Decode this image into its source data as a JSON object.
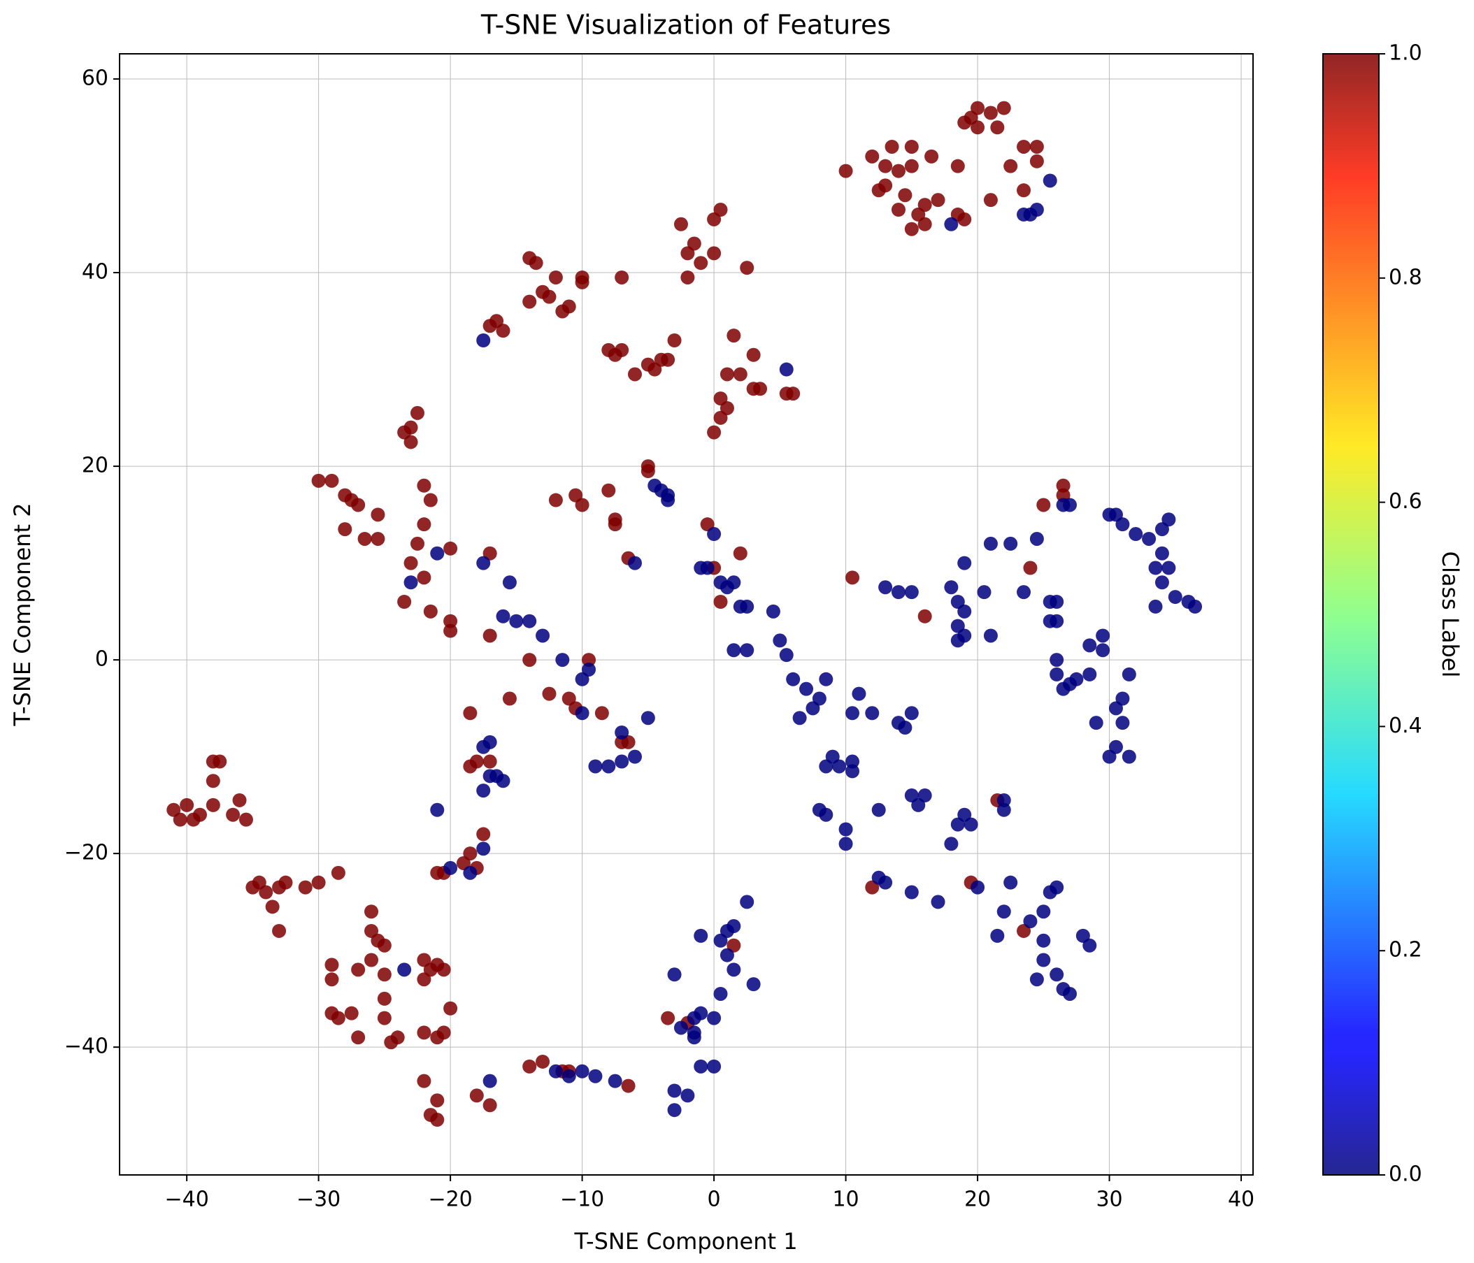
{
  "chart_data": {
    "type": "scatter",
    "title": "T-SNE Visualization of Features",
    "x_label": "T-SNE Component 1",
    "y_label": "T-SNE Component 2",
    "xlim": [
      -45.1,
      40.9
    ],
    "ylim": [
      -53.2,
      62.6
    ],
    "xticks": [
      {
        "value": -40,
        "label": "−40"
      },
      {
        "value": -30,
        "label": "−30"
      },
      {
        "value": -20,
        "label": "−20"
      },
      {
        "value": -10,
        "label": "−10"
      },
      0,
      10,
      20,
      30,
      40
    ],
    "yticks": [
      {
        "value": -40,
        "label": "−40"
      },
      {
        "value": -20,
        "label": "−20"
      },
      0,
      20,
      40,
      60
    ],
    "grid": true,
    "marker_opacity": 0.85,
    "colormap": [
      {
        "value": 0,
        "color": "#00007f"
      },
      {
        "value": 0.11,
        "color": "#0000ff"
      },
      {
        "value": 0.125,
        "color": "#0000ff"
      },
      {
        "value": 0.34,
        "color": "#00d4ff"
      },
      {
        "value": 0.5,
        "color": "#7dff7a"
      },
      {
        "value": 0.65,
        "color": "#ffe600"
      },
      {
        "value": 0.89,
        "color": "#ff1a00"
      },
      {
        "value": 1,
        "color": "#7f0000"
      }
    ],
    "colorbar": {
      "label": "Class Label",
      "lim": [
        0,
        1
      ],
      "ticks": [
        {
          "value": 0,
          "label": "0.0"
        },
        0.2,
        0.4,
        0.6,
        0.8,
        {
          "value": 1,
          "label": "1.0"
        }
      ]
    },
    "series": [
      {
        "class_value": 1,
        "x": [
          10,
          12,
          12.5,
          13,
          13.5,
          14,
          14.5,
          15,
          15,
          15.5,
          15,
          14,
          16,
          16.5,
          17,
          18.5,
          19,
          19.5,
          20,
          21,
          22,
          21.5,
          20,
          19,
          18.5,
          21,
          22.5,
          23.5,
          24.5,
          23.5,
          24.5,
          13,
          16,
          -14,
          -13.5,
          -12,
          -13,
          -14,
          -12.5,
          -11.5,
          -11,
          -10,
          -10,
          -16.5,
          -16,
          -17,
          -7,
          -2.5,
          -2,
          -1.5,
          -1,
          0,
          0.5,
          0,
          -2,
          2.5,
          -8,
          -7.5,
          -7,
          -6,
          -5,
          -4,
          -3.5,
          -3,
          -4.5,
          1.5,
          1,
          2,
          3,
          3,
          3.5,
          6,
          5.5,
          0,
          0.5,
          0.5,
          1,
          -23,
          -23.5,
          -23,
          -22.5,
          -30,
          -29,
          -28,
          -27.5,
          -27,
          -26.5,
          -28,
          -25.5,
          -25.5,
          -22,
          -21.5,
          -22,
          -22.5,
          -23,
          -22,
          -23.5,
          -21.5,
          -20,
          -20,
          -20,
          -17,
          -17,
          -15.5,
          -14,
          -12,
          -10.5,
          -10,
          -8,
          -7.5,
          -7.5,
          -6.5,
          -5,
          -5,
          -0.5,
          0,
          0.5,
          2,
          -12.5,
          -11,
          -10.5,
          -8.5,
          -7,
          -6.5,
          -9.5,
          10.5,
          16,
          24,
          25,
          26.5,
          26.5,
          -41,
          -40.5,
          -40,
          -39.5,
          -39,
          -38,
          -37.5,
          -38,
          -38,
          -36.5,
          -36,
          -35.5,
          -35,
          -34.5,
          -34,
          -33.5,
          -33,
          -33,
          -32.5,
          -31,
          -30,
          -28.5,
          -29,
          -29,
          -29,
          -28.5,
          -27.5,
          -27,
          -27,
          -26,
          -26,
          -25.5,
          -25,
          -26,
          -25,
          -25,
          -25,
          -24.5,
          -24,
          -22,
          -21.5,
          -21,
          -20.5,
          -22,
          -22,
          -21,
          -20.5,
          -20,
          -22,
          -21.5,
          -21,
          -21,
          -18.5,
          -18,
          -18.5,
          -17,
          -17.5,
          -18.5,
          -19,
          -18,
          -21,
          -20.5,
          -18,
          -17,
          -14,
          -13,
          -11.5,
          -11,
          -6.5,
          -3.5,
          -2,
          1.5,
          12,
          19.5,
          21.5,
          23.5
        ],
        "values": [
          50.5,
          52,
          48.5,
          49,
          53,
          50.5,
          48,
          53,
          51,
          46,
          44.5,
          46.5,
          47,
          52,
          47.5,
          51,
          55.5,
          56,
          57,
          56.5,
          57,
          55,
          55,
          45.5,
          46,
          47.5,
          51,
          53,
          53,
          48.5,
          51.5,
          51,
          45,
          41.5,
          41,
          39.5,
          38,
          37,
          37.5,
          36,
          36.5,
          39.5,
          39,
          35,
          34,
          34.5,
          39.5,
          45,
          42,
          43,
          41,
          45.5,
          46.5,
          42,
          39.5,
          40.5,
          32,
          31.5,
          32,
          29.5,
          30.5,
          31,
          31,
          33,
          30,
          33.5,
          29.5,
          29.5,
          31.5,
          28,
          28,
          27.5,
          27.5,
          23.5,
          25,
          27,
          26,
          24,
          23.5,
          22.5,
          25.5,
          18.5,
          18.5,
          17,
          16.5,
          16,
          12.5,
          13.5,
          12.5,
          15,
          18,
          16.5,
          14,
          12,
          10,
          8.5,
          6,
          5,
          4,
          3,
          11.5,
          11,
          2.5,
          -4,
          0,
          16.5,
          17,
          16,
          17.5,
          14.5,
          14,
          10.5,
          20,
          19.5,
          14,
          9.5,
          6,
          11,
          -3.5,
          -4,
          -5,
          -5.5,
          -8.5,
          -8.5,
          0,
          8.5,
          4.5,
          9.5,
          16,
          18,
          17,
          -15.5,
          -16.5,
          -15,
          -16.5,
          -16,
          -10.5,
          -10.5,
          -12.5,
          -15,
          -16,
          -14.5,
          -16.5,
          -23.5,
          -23,
          -24,
          -25.5,
          -28,
          -23.5,
          -23,
          -23.5,
          -23,
          -22,
          -31.5,
          -33,
          -36.5,
          -37,
          -36.5,
          -32,
          -39,
          -26,
          -28,
          -29,
          -29.5,
          -31,
          -32.5,
          -35,
          -37,
          -39.5,
          -39,
          -31,
          -32,
          -31.5,
          -32,
          -33,
          -38.5,
          -39,
          -38.5,
          -36,
          -43.5,
          -47,
          -47.5,
          -45.5,
          -11,
          -10.5,
          -5.5,
          -10.5,
          -18,
          -20,
          -21,
          -21.5,
          -22,
          -22,
          -45,
          -46,
          -42,
          -41.5,
          -42.5,
          -42.5,
          -44,
          -37,
          -37.5,
          -29.5,
          -23.5,
          -23,
          -14.5,
          -28
        ]
      },
      {
        "class_value": 0,
        "x": [
          18,
          24,
          24.5,
          25.5,
          23.5,
          -17.5,
          5.5,
          -21,
          -23,
          -17.5,
          -15.5,
          -16,
          -15,
          -14,
          -13,
          -11.5,
          -9.5,
          -10,
          -10,
          -7,
          -6,
          -7,
          -8,
          -9,
          -5,
          -6,
          -4.5,
          -4,
          -3.5,
          -3.5,
          0,
          -1,
          -0.5,
          0.5,
          1,
          1.5,
          2,
          2.5,
          4.5,
          1.5,
          2.5,
          5,
          5.5,
          6,
          7,
          8,
          8.5,
          7.5,
          6.5,
          9,
          8.5,
          9.5,
          10.5,
          10.5,
          8,
          8.5,
          10,
          10,
          11,
          10.5,
          12,
          12.5,
          14,
          14.5,
          15,
          15,
          16,
          15.5,
          17,
          18,
          18.5,
          19,
          19.5,
          12.5,
          13,
          15,
          20,
          22,
          22,
          22.5,
          22,
          21.5,
          24,
          25,
          25.5,
          26,
          25,
          25,
          24.5,
          26,
          26.5,
          27,
          28,
          28.5,
          13,
          14,
          15,
          18,
          18.5,
          19,
          18.5,
          19,
          18.5,
          19,
          20.5,
          21,
          21,
          22.5,
          23.5,
          24.5,
          25.5,
          26,
          25.5,
          26,
          26,
          26,
          26.5,
          27,
          27.5,
          28.5,
          28.5,
          29.5,
          29.5,
          29,
          30,
          30.5,
          31,
          30.5,
          31,
          31.5,
          31.5,
          30,
          30.5,
          31,
          32,
          33,
          34,
          34.5,
          34,
          34.5,
          34,
          33.5,
          33.5,
          35,
          36,
          36.5,
          26.5,
          27,
          -21,
          -20,
          -18.5,
          -17.5,
          -17.5,
          -17,
          -16.5,
          -17,
          -17.5,
          -16,
          -23.5,
          -17,
          -12,
          -11,
          -10,
          -9,
          -7.5,
          -3,
          -3,
          -3,
          -2,
          -1.5,
          -1,
          0,
          -2.5,
          -1.5,
          -1,
          0,
          0.5,
          1,
          0.5,
          1,
          1.5,
          2.5,
          3,
          1.5,
          -1,
          -1.5
        ],
        "values": [
          45,
          46,
          46.5,
          49.5,
          46,
          33,
          30,
          11,
          8,
          10,
          8,
          4.5,
          4,
          4,
          2.5,
          0,
          -1,
          -2,
          -5.5,
          -7.5,
          -10,
          -10.5,
          -11,
          -11,
          -6,
          10,
          18,
          17.5,
          16.5,
          17,
          13,
          9.5,
          9.5,
          8,
          7.5,
          8,
          5.5,
          5.5,
          5,
          1,
          1,
          2,
          0.5,
          -2,
          -3,
          -4,
          -2,
          -5,
          -6,
          -10,
          -11,
          -11,
          -10.5,
          -11.5,
          -15.5,
          -16,
          -17.5,
          -19,
          -3.5,
          -5.5,
          -5.5,
          -15.5,
          -6.5,
          -7,
          -5.5,
          -14,
          -14,
          -15,
          -25,
          -19,
          -17,
          -16,
          -17,
          -22.5,
          -23,
          -24,
          -23.5,
          -14.5,
          -15.5,
          -23,
          -26,
          -28.5,
          -27,
          -26,
          -24,
          -23.5,
          -29,
          -31,
          -33,
          -32.5,
          -34,
          -34.5,
          -28.5,
          -29.5,
          7.5,
          7,
          7,
          7.5,
          6,
          5,
          3.5,
          2.5,
          2,
          10,
          7,
          2.5,
          12,
          12,
          7,
          12.5,
          6,
          6,
          4,
          4,
          0,
          -1.5,
          -3,
          -2.5,
          -2,
          -1.5,
          1.5,
          1,
          2.5,
          -6.5,
          -10,
          -9,
          -4,
          -5,
          -6.5,
          -1.5,
          -10,
          15,
          15,
          14,
          13,
          12.5,
          13.5,
          14.5,
          11,
          9.5,
          8,
          9.5,
          5.5,
          6.5,
          6,
          5.5,
          16,
          16,
          -15.5,
          -21.5,
          -22,
          -19.5,
          -13.5,
          -12,
          -12,
          -8.5,
          -9,
          -12.5,
          -32,
          -43.5,
          -42.5,
          -43,
          -42.5,
          -43,
          -43.5,
          -32.5,
          -46.5,
          -44.5,
          -45,
          -39,
          -42,
          -42,
          -38,
          -37,
          -36.5,
          -37,
          -34.5,
          -30.5,
          -29,
          -28,
          -27.5,
          -25,
          -33.5,
          -32,
          -28.5,
          -38.5
        ]
      }
    ]
  }
}
